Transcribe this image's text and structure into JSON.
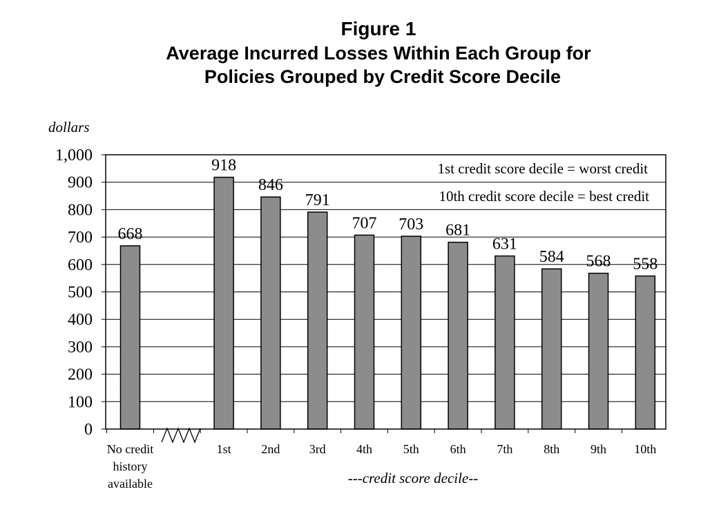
{
  "chart_data": {
    "type": "bar",
    "title": "Figure 1",
    "subtitle": [
      "Average Incurred Losses Within Each Group for",
      "Policies Grouped by Credit Score Decile"
    ],
    "ylabel": "dollars",
    "xlabel": "---credit score decile--",
    "ylim": [
      0,
      1000
    ],
    "yticks": [
      "0",
      "100",
      "200",
      "300",
      "400",
      "500",
      "600",
      "700",
      "800",
      "900",
      "1,000"
    ],
    "categories": [
      "No credit history available",
      "1st",
      "2nd",
      "3rd",
      "4th",
      "5th",
      "6th",
      "7th",
      "8th",
      "9th",
      "10th"
    ],
    "first_category_lines": [
      "No credit",
      "history",
      "available"
    ],
    "values": [
      668,
      918,
      846,
      791,
      707,
      703,
      681,
      631,
      584,
      568,
      558
    ],
    "data_labels": [
      "668",
      "918",
      "846",
      "791",
      "707",
      "703",
      "681",
      "631",
      "584",
      "568",
      "558"
    ],
    "annotations": [
      "1st credit score decile = worst credit",
      "10th credit score decile = best credit"
    ],
    "axis_break": true,
    "grid": true,
    "bar_color": "#8c8c8c"
  }
}
